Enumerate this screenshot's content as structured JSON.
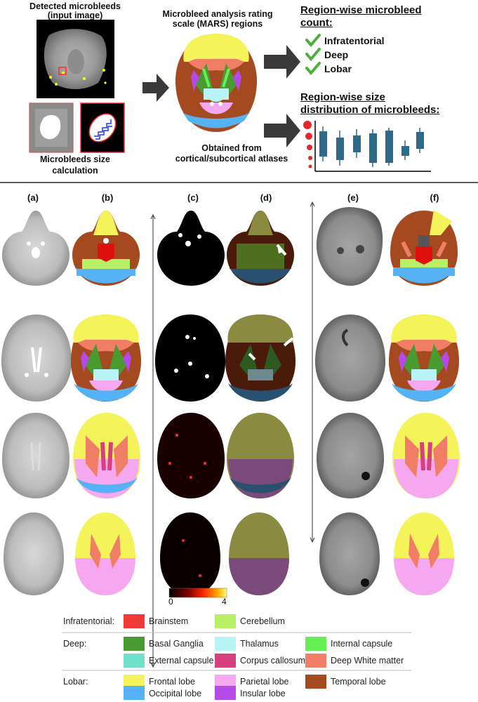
{
  "top": {
    "detected_title_line1": "Detected microbleeds",
    "detected_title_line2": "(input image)",
    "size_calc_line1": "Microbleeds size",
    "size_calc_line2": "calculation",
    "mars_title_line1": "Microbleed analysis rating",
    "mars_title_line2": "scale (MARS) regions",
    "atlas_line1": "Obtained from",
    "atlas_line2": "cortical/subcortical atlases",
    "count_title_line1": "Region-wise microbleed",
    "count_title_line2": "count:",
    "count_items": [
      "Infratentorial",
      "Deep",
      "Lobar"
    ],
    "size_title_line1": "Region-wise size",
    "size_title_line2": "distribution of microbleeds:"
  },
  "columns": [
    "(a)",
    "(b)",
    "(c)",
    "(d)",
    "(e)",
    "(f)"
  ],
  "colorbar": {
    "min": "0",
    "max": "4"
  },
  "legend": {
    "groups": [
      {
        "name": "Infratentorial:",
        "items": [
          {
            "label": "Brainstem",
            "color": "#f03a3a"
          },
          {
            "label": "Cerebellum",
            "color": "#b8f065"
          }
        ]
      },
      {
        "name": "Deep:",
        "items": [
          {
            "label": "Basal Ganglia",
            "color": "#4a9a32"
          },
          {
            "label": "Thalamus",
            "color": "#b8f4f6"
          },
          {
            "label": "Internal capsule",
            "color": "#66ee55"
          },
          {
            "label": "External capsule",
            "color": "#6fe0cc"
          },
          {
            "label": "Corpus callosum",
            "color": "#d6407f"
          },
          {
            "label": "Deep White matter",
            "color": "#f07e66"
          }
        ]
      },
      {
        "name": "Lobar:",
        "items": [
          {
            "label": "Frontal lobe",
            "color": "#f4f45a"
          },
          {
            "label": "Parietal lobe",
            "color": "#f5a8f0"
          },
          {
            "label": "Temporal lobe",
            "color": "#a54a20"
          },
          {
            "label": "Occipital lobe",
            "color": "#55b2f4"
          },
          {
            "label": "Insular lobe",
            "color": "#b64ae8"
          }
        ]
      }
    ]
  },
  "colors": {
    "frontal": "#f4f45a",
    "parietal": "#f5a8f0",
    "temporal": "#a54a20",
    "occipital": "#55b2f4",
    "insular": "#b64ae8",
    "brainstem": "#f03a3a",
    "cerebellum": "#b8f065",
    "basal_ganglia": "#4a9a32",
    "thalamus": "#b8f4f6",
    "internal_capsule": "#66ee55",
    "external_capsule": "#6fe0cc",
    "corpus_callosum": "#d6407f",
    "deep_white_matter": "#f07e66",
    "arrow": "#3a3a3a",
    "check": "#4caf3a",
    "box": "#2f6b88"
  }
}
